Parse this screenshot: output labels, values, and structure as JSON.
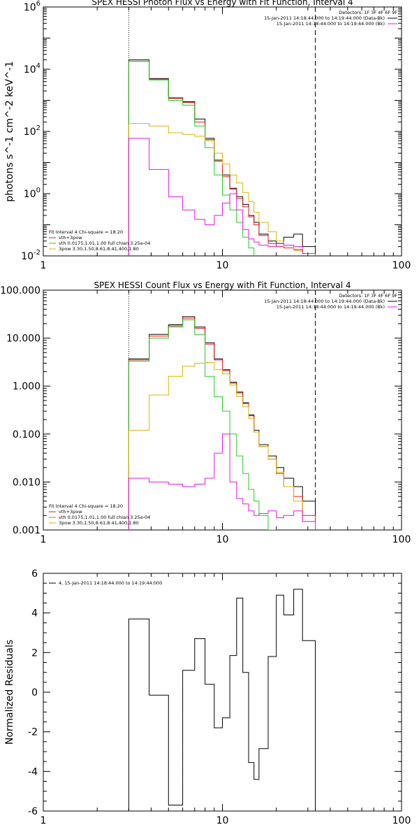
{
  "chart_data": [
    {
      "type": "line",
      "title": "SPEX HESSI Photon Flux vs Energy with Fit Function, Interval 4",
      "ylabel": "photons s^-1 cm^-2 keV^-1",
      "xscale": "log",
      "yscale": "log",
      "xlim": [
        1,
        100
      ],
      "ylim": [
        0.01,
        1000000
      ],
      "x_ticks": [
        "1",
        "10",
        "100"
      ],
      "y_ticks": [
        {
          "base": "10",
          "exp": "-2"
        },
        {
          "base": "10",
          "exp": "0"
        },
        {
          "base": "10",
          "exp": "2"
        },
        {
          "base": "10",
          "exp": "4"
        },
        {
          "base": "10",
          "exp": "6"
        }
      ],
      "legend_right": [
        "Detectors: 1F 3F 4F 6F 9F",
        "15-Jan-2011 14:18:44.000 to 14:19:44.000 (Data-Bk)",
        "15-Jan-2011 14:18:44.000 to 14:19:44.000 (Bk)"
      ],
      "legend_left": [
        "Fit Interval  4    Chi-square = 18.20",
        "vth+3pow",
        "vth 0.0175,1.01,1.00  full chian 3.25e-04",
        "3pow 3.30,1.50,8.61,8.41,400,1.80"
      ],
      "vlines": [
        {
          "x": 3.0,
          "style": "dotted"
        },
        {
          "x": 33.0,
          "style": "dashed"
        }
      ],
      "bin_edges": [
        3,
        3.9,
        5,
        6,
        7,
        8,
        9,
        10,
        11,
        12,
        13,
        14,
        15,
        16,
        18,
        20,
        22,
        25,
        28,
        33
      ],
      "series": [
        {
          "color": "#000000",
          "values": [
            20000,
            5000,
            1200,
            900,
            250,
            60,
            12,
            4,
            1.5,
            0.8,
            0.45,
            0.2,
            0.12,
            0.05,
            0.03,
            0.025,
            0.04,
            0.05,
            0.02
          ]
        },
        {
          "color": "#e8191f",
          "values": [
            18000,
            4800,
            1150,
            850,
            200,
            55,
            11,
            3.5,
            1.4,
            0.7,
            0.38,
            0.18,
            0.1,
            0.045,
            0.025,
            0.02,
            0.018,
            0.016,
            0.012
          ]
        },
        {
          "color": "#22cc22",
          "values": [
            18000,
            4500,
            1000,
            700,
            150,
            30,
            4,
            0.9,
            0.3,
            0.12,
            0.04,
            0.018
          ]
        },
        {
          "color": "#dcb400",
          "values": [
            180,
            150,
            90,
            80,
            70,
            50,
            20,
            9,
            4,
            2.2,
            1.1,
            0.55,
            0.25,
            0.12,
            0.06,
            0.03,
            0.022,
            0.015,
            0.012
          ]
        },
        {
          "color": "#e815e8",
          "values": [
            60,
            6,
            0.8,
            0.3,
            0.15,
            0.1,
            0.2,
            0.5,
            1.0,
            0.3,
            0.07,
            0.035,
            0.028,
            0.022,
            0.02,
            0.025,
            0.022,
            0.02,
            0.012
          ]
        }
      ]
    },
    {
      "type": "line",
      "title": "SPEX HESSI Count Flux vs Energy with Fit Function, Interval 4",
      "xscale": "log",
      "yscale": "log",
      "xlim": [
        1,
        100
      ],
      "ylim": [
        0.001,
        100
      ],
      "x_ticks": [
        "1",
        "10",
        "100"
      ],
      "y_ticks": [
        "0.001",
        "0.010",
        "0.100",
        "1.000",
        "10.000",
        "100.000"
      ],
      "legend_right": [
        "Detectors: 1F 3F 4F 6F 9F",
        "15-Jan-2011 14:18:44.000 to 14:19:44.000 (Data-Bk)",
        "15-Jan-2011 14:18:44.000 to 14:19:44.000 (Bk)"
      ],
      "legend_left": [
        "Fit Interval  4    Chi-square = 18.20",
        "vth+3pow",
        "vth 0.0175,1.01,1.00  full chian 3.25e-04",
        "3pow 3.30,1.50,8.61,8.41,400,1.80"
      ],
      "vlines": [
        {
          "x": 3.0,
          "style": "dotted"
        },
        {
          "x": 33.0,
          "style": "dashed"
        }
      ],
      "bin_edges": [
        3,
        3.9,
        5,
        6,
        7,
        8,
        9,
        10,
        11,
        12,
        13,
        14,
        15,
        16,
        18,
        20,
        22,
        25,
        28,
        33
      ],
      "series": [
        {
          "color": "#000000",
          "values": [
            3.7,
            12,
            19,
            28,
            17,
            8,
            3.7,
            2.2,
            1.2,
            0.75,
            0.45,
            0.25,
            0.12,
            0.06,
            0.035,
            0.02,
            0.012,
            0.008,
            0.004
          ]
        },
        {
          "color": "#e8191f",
          "values": [
            3.5,
            11,
            18,
            26,
            16,
            7.5,
            3.5,
            2.1,
            1.15,
            0.72,
            0.43,
            0.24,
            0.11,
            0.055,
            0.03,
            0.015,
            0.008,
            0.005,
            0.002
          ]
        },
        {
          "color": "#22cc22",
          "values": [
            3.3,
            10,
            17,
            24,
            12,
            1.6,
            0.6,
            0.3,
            0.1,
            0.035,
            0.015,
            0.007,
            0.004,
            0.002,
            0.001
          ]
        },
        {
          "color": "#dcb400",
          "values": [
            0.12,
            0.65,
            1.6,
            2.6,
            3.0,
            3.1,
            2.2,
            1.8,
            1.05,
            0.6,
            0.37,
            0.21,
            0.11,
            0.055,
            0.03,
            0.016,
            0.008,
            0.004,
            0.0015
          ]
        },
        {
          "color": "#e815e8",
          "values": [
            0.012,
            0.01,
            0.009,
            0.008,
            0.009,
            0.012,
            0.04,
            0.1,
            0.01,
            0.0045,
            0.0035,
            0.0025,
            0.002,
            0.0022,
            0.0025,
            0.0018,
            0.002,
            0.0025,
            0.0015
          ]
        }
      ]
    },
    {
      "type": "line",
      "ylabel": "Normalized Residuals",
      "xscale": "log",
      "yscale": "linear",
      "xlim": [
        1,
        100
      ],
      "ylim": [
        -6,
        6
      ],
      "x_ticks": [
        "1",
        "10",
        "100"
      ],
      "y_ticks": [
        "-6",
        "-4",
        "-2",
        "0",
        "2",
        "4",
        "6"
      ],
      "legend_left": [
        "4, 15-Jan-2011 14:18:44.000 to 14:19:44.000"
      ],
      "bin_edges": [
        3,
        3.9,
        5,
        6,
        7,
        8,
        9,
        10,
        11,
        12,
        13,
        14,
        15,
        16,
        18,
        20,
        22,
        25,
        28,
        33
      ],
      "series": [
        {
          "color": "#000000",
          "values": [
            3.7,
            -0.15,
            -5.7,
            1.1,
            2.7,
            0.4,
            -1.8,
            -1.3,
            1.85,
            4.75,
            1.0,
            -3.55,
            -4.4,
            -2.85,
            1.8,
            4.9,
            3.9,
            5.2,
            2.6
          ]
        }
      ],
      "end_drop_to": -6
    }
  ]
}
